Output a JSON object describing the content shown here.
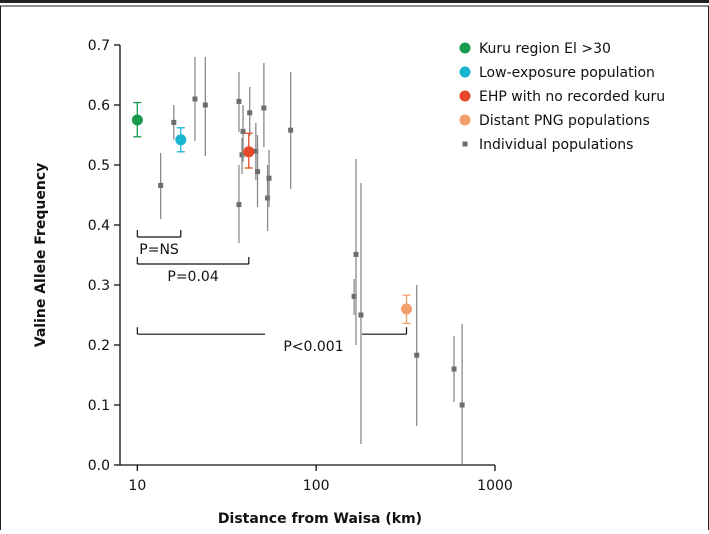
{
  "chart_data": {
    "type": "scatter",
    "xlabel": "Distance from Waisa (km)",
    "ylabel": "Valine Allele Frequency",
    "x_scale": "log",
    "xlim": [
      8,
      1000
    ],
    "ylim": [
      0,
      0.7
    ],
    "x_ticks": [
      10,
      100,
      1000
    ],
    "x_tick_labels": [
      "10",
      "100",
      "1000"
    ],
    "y_ticks": [
      0.0,
      0.1,
      0.2,
      0.3,
      0.4,
      0.5,
      0.6,
      0.7
    ],
    "y_tick_labels": [
      "0.0",
      "0.1",
      "0.2",
      "0.3",
      "0.4",
      "0.5",
      "0.6",
      "0.7"
    ],
    "grid": false,
    "legend_position": "top-right",
    "series": [
      {
        "name": "Kuru region El >30",
        "color": "#1a9a4e",
        "marker": "circle",
        "points": [
          {
            "x": 10,
            "y": 0.575,
            "low": 0.547,
            "high": 0.604
          }
        ]
      },
      {
        "name": "Low-exposure population",
        "color": "#1ab3d1",
        "marker": "circle",
        "points": [
          {
            "x": 17.5,
            "y": 0.542,
            "low": 0.522,
            "high": 0.562
          }
        ]
      },
      {
        "name": "EHP with no recorded kuru",
        "color": "#e8482a",
        "marker": "circle",
        "points": [
          {
            "x": 42,
            "y": 0.522,
            "low": 0.495,
            "high": 0.553
          }
        ]
      },
      {
        "name": "Distant PNG populations",
        "color": "#f29e6b",
        "marker": "circle",
        "points": [
          {
            "x": 320,
            "y": 0.26,
            "low": 0.236,
            "high": 0.283
          }
        ]
      },
      {
        "name": "Individual populations",
        "color": "#6d6d6d",
        "marker": "square",
        "points": [
          {
            "x": 13.5,
            "y": 0.466,
            "low": 0.41,
            "high": 0.52
          },
          {
            "x": 16,
            "y": 0.571,
            "low": 0.542,
            "high": 0.6
          },
          {
            "x": 21,
            "y": 0.61,
            "low": 0.54,
            "high": 0.68
          },
          {
            "x": 24,
            "y": 0.6,
            "low": 0.515,
            "high": 0.68
          },
          {
            "x": 37,
            "y": 0.606,
            "low": 0.555,
            "high": 0.655
          },
          {
            "x": 37,
            "y": 0.434,
            "low": 0.37,
            "high": 0.5
          },
          {
            "x": 38.5,
            "y": 0.517,
            "low": 0.485,
            "high": 0.545
          },
          {
            "x": 39,
            "y": 0.556,
            "low": 0.505,
            "high": 0.6
          },
          {
            "x": 42.5,
            "y": 0.587,
            "low": 0.548,
            "high": 0.63
          },
          {
            "x": 46,
            "y": 0.523,
            "low": 0.475,
            "high": 0.57
          },
          {
            "x": 47,
            "y": 0.489,
            "low": 0.43,
            "high": 0.55
          },
          {
            "x": 51,
            "y": 0.595,
            "low": 0.53,
            "high": 0.67
          },
          {
            "x": 53.5,
            "y": 0.445,
            "low": 0.39,
            "high": 0.5
          },
          {
            "x": 54.5,
            "y": 0.478,
            "low": 0.43,
            "high": 0.525
          },
          {
            "x": 72,
            "y": 0.558,
            "low": 0.46,
            "high": 0.655
          },
          {
            "x": 163,
            "y": 0.281,
            "low": 0.25,
            "high": 0.31
          },
          {
            "x": 167,
            "y": 0.351,
            "low": 0.2,
            "high": 0.51
          },
          {
            "x": 178,
            "y": 0.25,
            "low": 0.035,
            "high": 0.47
          },
          {
            "x": 365,
            "y": 0.183,
            "low": 0.065,
            "high": 0.3
          },
          {
            "x": 590,
            "y": 0.16,
            "low": 0.105,
            "high": 0.215
          },
          {
            "x": 655,
            "y": 0.1,
            "low": 0.0,
            "high": 0.235
          }
        ]
      }
    ],
    "annotations": [
      {
        "label": "P=NS",
        "from_x": 10,
        "to_x": 17.5,
        "y": 0.38
      },
      {
        "label": "P=0.04",
        "from_x": 10,
        "to_x": 42,
        "y": 0.335
      },
      {
        "label": "P<0.001",
        "from_x": 10,
        "to_x": 320,
        "y": 0.218
      }
    ]
  }
}
